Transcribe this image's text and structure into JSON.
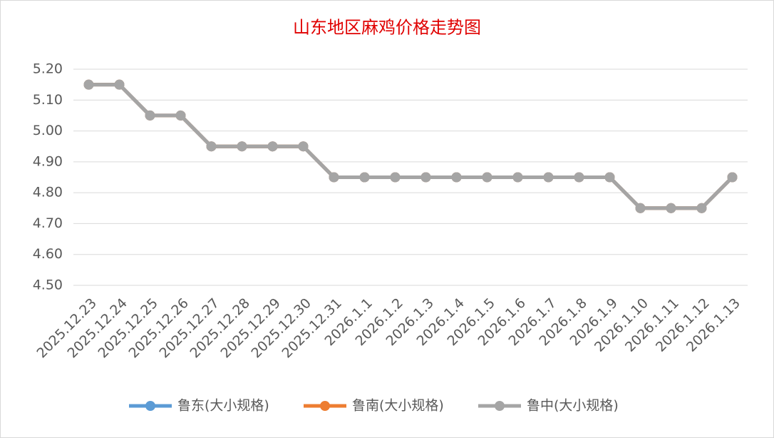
{
  "chart_data": {
    "type": "line",
    "title": "山东地区麻鸡价格走势图",
    "categories": [
      "2025.12.23",
      "2025.12.24",
      "2025.12.25",
      "2025.12.26",
      "2025.12.27",
      "2025.12.28",
      "2025.12.29",
      "2025.12.30",
      "2025.12.31",
      "2026.1.1",
      "2026.1.2",
      "2026.1.3",
      "2026.1.4",
      "2026.1.5",
      "2026.1.6",
      "2026.1.7",
      "2026.1.8",
      "2026.1.9",
      "2026.1.10",
      "2026.1.11",
      "2026.1.12",
      "2026.1.13"
    ],
    "series": [
      {
        "name": "鲁东(大小规格)",
        "color": "#5b9bd5",
        "values": [
          5.15,
          5.15,
          5.05,
          5.05,
          4.95,
          4.95,
          4.95,
          4.95,
          4.85,
          4.85,
          4.85,
          4.85,
          4.85,
          4.85,
          4.85,
          4.85,
          4.85,
          4.85,
          4.75,
          4.75,
          4.75,
          4.85
        ]
      },
      {
        "name": "鲁南(大小规格)",
        "color": "#ed7d31",
        "values": [
          5.15,
          5.15,
          5.05,
          5.05,
          4.95,
          4.95,
          4.95,
          4.95,
          4.85,
          4.85,
          4.85,
          4.85,
          4.85,
          4.85,
          4.85,
          4.85,
          4.85,
          4.85,
          4.75,
          4.75,
          4.75,
          4.85
        ]
      },
      {
        "name": "鲁中(大小规格)",
        "color": "#a5a5a5",
        "values": [
          5.15,
          5.15,
          5.05,
          5.05,
          4.95,
          4.95,
          4.95,
          4.95,
          4.85,
          4.85,
          4.85,
          4.85,
          4.85,
          4.85,
          4.85,
          4.85,
          4.85,
          4.85,
          4.75,
          4.75,
          4.75,
          4.85
        ]
      }
    ],
    "ylim": [
      4.5,
      5.2
    ],
    "yticks": [
      {
        "value": 4.5,
        "label": "4.50"
      },
      {
        "value": 4.6,
        "label": "4.60"
      },
      {
        "value": 4.7,
        "label": "4.70"
      },
      {
        "value": 4.8,
        "label": "4.80"
      },
      {
        "value": 4.9,
        "label": "4.90"
      },
      {
        "value": 5.0,
        "label": "5.00"
      },
      {
        "value": 5.1,
        "label": "5.10"
      },
      {
        "value": 5.2,
        "label": "5.20"
      }
    ],
    "grid": true,
    "legend": "bottom"
  }
}
